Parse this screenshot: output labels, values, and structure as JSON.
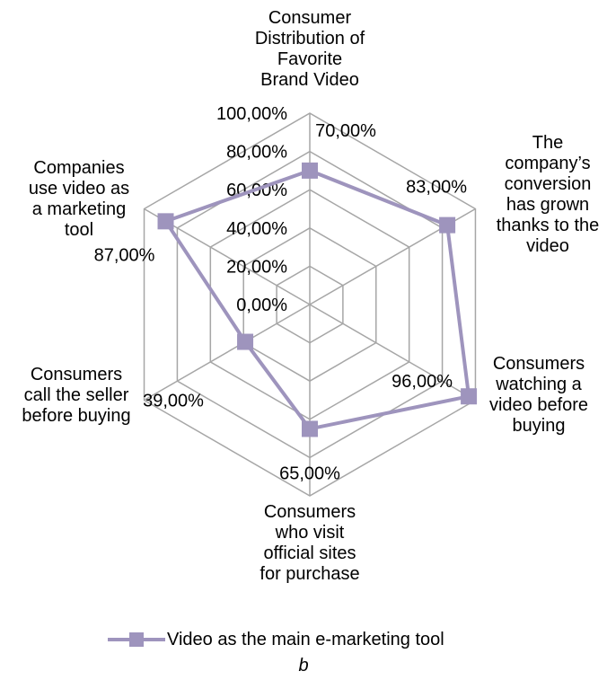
{
  "chart_data": {
    "type": "radar",
    "categories": [
      [
        "Consumer",
        "Distribution of",
        "Favorite",
        "Brand Video"
      ],
      [
        "The",
        "company’s",
        "conversion",
        "has grown",
        "thanks to the",
        "video"
      ],
      [
        "Consumers",
        "watching a",
        "video before",
        "buying"
      ],
      [
        "Consumers",
        "who visit",
        "official sites",
        "for purchase"
      ],
      [
        "Consumers",
        "call the seller",
        "before buying"
      ],
      [
        "Companies",
        "use video as",
        "a marketing",
        "tool"
      ]
    ],
    "radial_ticks": [
      "0,00%",
      "20,00%",
      "40,00%",
      "60,00%",
      "80,00%",
      "100,00%"
    ],
    "rlim": [
      0,
      100
    ],
    "series": [
      {
        "name": "Video as the main e-marketing tool",
        "values": [
          70,
          83,
          96,
          65,
          39,
          87
        ],
        "value_labels": [
          "70,00%",
          "83,00%",
          "96,00%",
          "65,00%",
          "39,00%",
          "87,00%"
        ],
        "color": "#9e94bd"
      }
    ],
    "grid_color": "#a6a6a6",
    "legend_position": "bottom"
  },
  "caption": "b"
}
